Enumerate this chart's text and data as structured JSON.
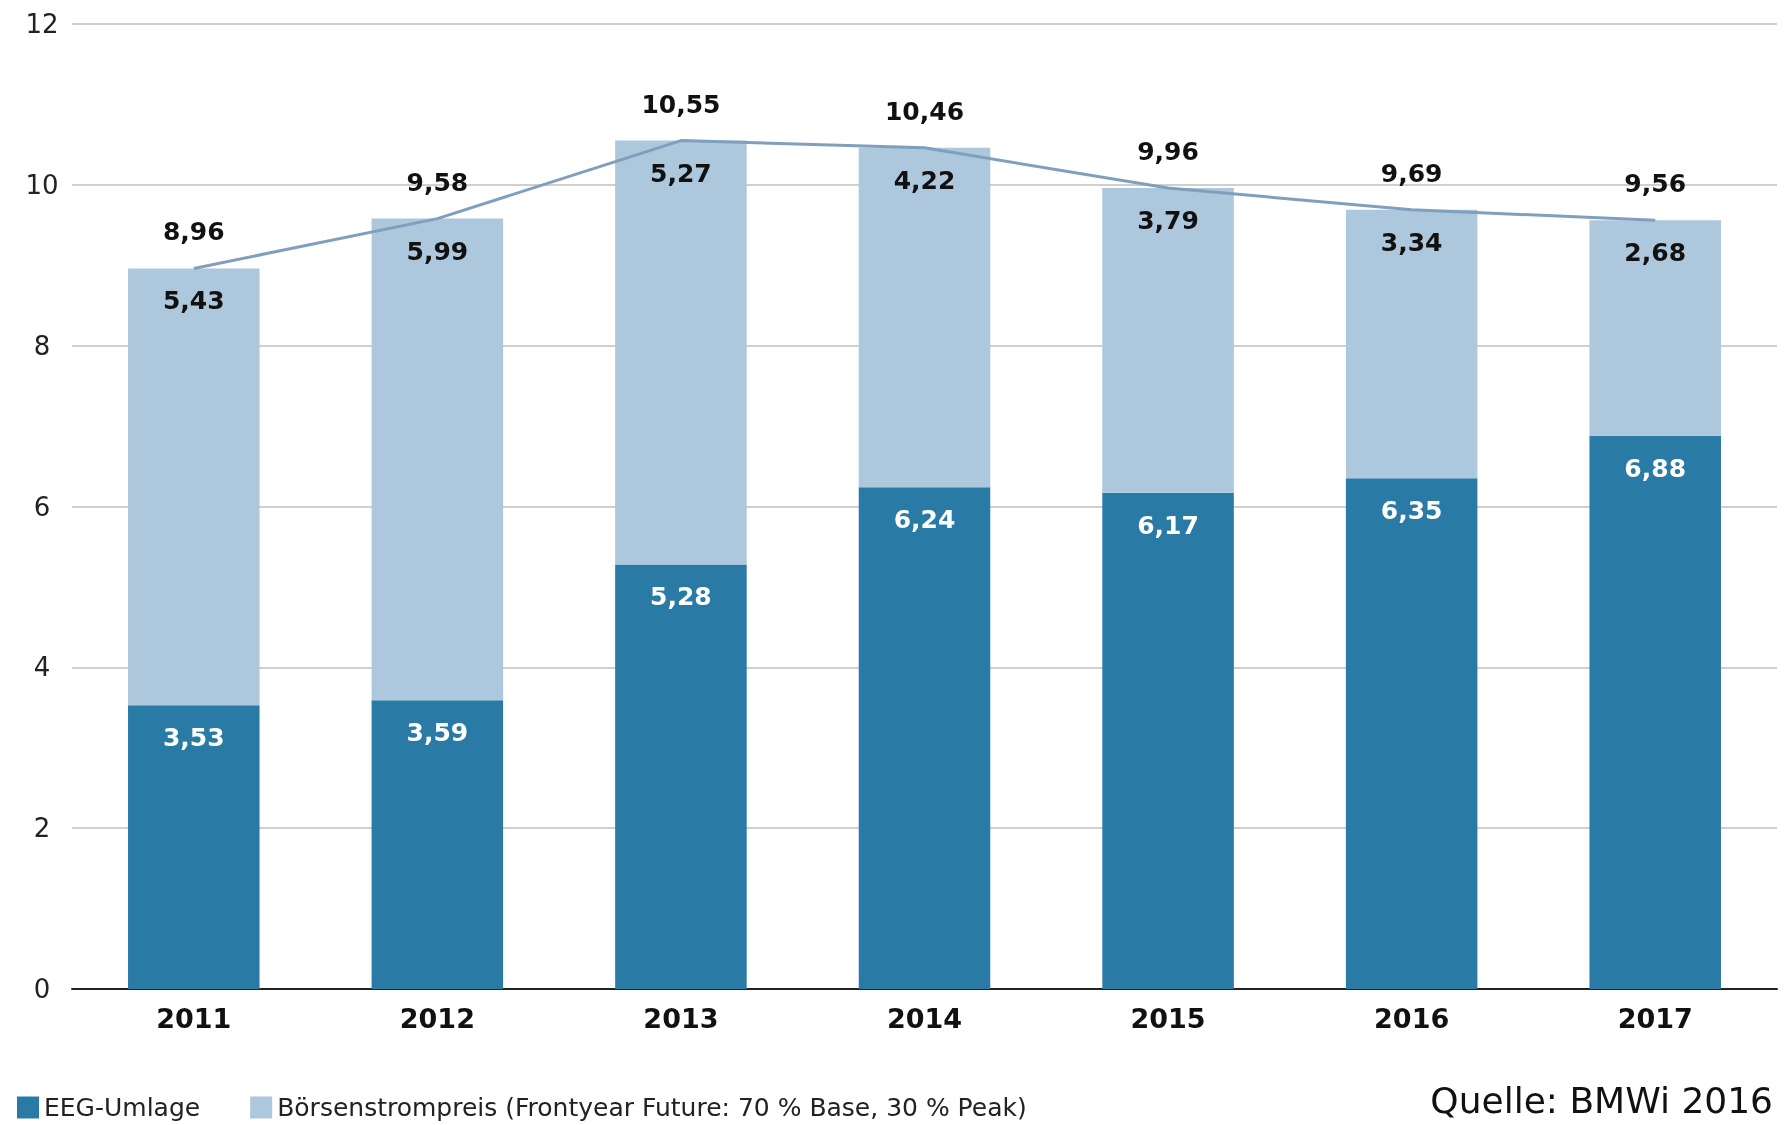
{
  "chart_data": {
    "type": "bar",
    "stacked": true,
    "categories": [
      "2011",
      "2012",
      "2013",
      "2014",
      "2015",
      "2016",
      "2017"
    ],
    "series": [
      {
        "name": "EEG-Umlage",
        "color": "#2a7aa6",
        "values": [
          3.53,
          3.59,
          5.28,
          6.24,
          6.17,
          6.35,
          6.88
        ]
      },
      {
        "name": "Börsenstrompreis (Frontyear Future: 70 % Base, 30 % Peak)",
        "color": "#adc7dd",
        "values": [
          5.43,
          5.99,
          5.27,
          4.22,
          3.79,
          3.34,
          2.68
        ]
      },
      {
        "type": "line",
        "color": "#7f9fbd",
        "values": [
          8.96,
          9.58,
          10.55,
          10.46,
          9.96,
          9.69,
          9.56
        ]
      }
    ],
    "totals": [
      "8,96",
      "9,58",
      "10,55",
      "10,46",
      "9,96",
      "9,69",
      "9,56"
    ],
    "value_labels": [
      [
        "3,53",
        "3,59",
        "5,28",
        "6,24",
        "6,17",
        "6,35",
        "6,88"
      ],
      [
        "5,43",
        "5,99",
        "5,27",
        "4,22",
        "3,79",
        "3,34",
        "2,68"
      ]
    ],
    "ylim": [
      0,
      12
    ],
    "yticks": [
      0,
      2,
      4,
      6,
      8,
      10,
      12
    ],
    "grid": "y",
    "legend": "bottom left",
    "marker": "none",
    "annotations": [
      "Quelle: BMWi 2016"
    ]
  }
}
